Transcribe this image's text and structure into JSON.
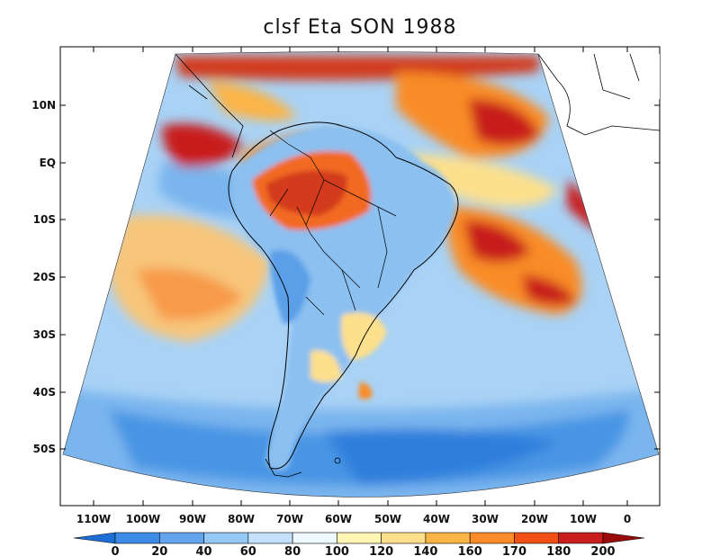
{
  "title": "clsf Eta SON 1988",
  "lat_labels": [
    "10N",
    "EQ",
    "10S",
    "20S",
    "30S",
    "40S",
    "50S"
  ],
  "lon_labels": [
    "110W",
    "100W",
    "90W",
    "80W",
    "70W",
    "60W",
    "50W",
    "40W",
    "30W",
    "20W",
    "10W",
    "0"
  ],
  "colorbar": {
    "labels": [
      "0",
      "20",
      "40",
      "60",
      "80",
      "100",
      "120",
      "140",
      "160",
      "170",
      "180",
      "200"
    ],
    "colors": [
      "#1e6ed8",
      "#3c8ce6",
      "#64a5f0",
      "#96c8f5",
      "#c3e1fa",
      "#eef8ff",
      "#fff5b4",
      "#fde08c",
      "#fbb446",
      "#f98c28",
      "#f05014",
      "#c81e1e",
      "#9b0a0a"
    ]
  },
  "palette": {
    "ocean_blue": "#96c8f5",
    "deep_blue": "#3c8ce6",
    "dark_red": "#c81e1e",
    "land_blue": "#64a5f0"
  }
}
